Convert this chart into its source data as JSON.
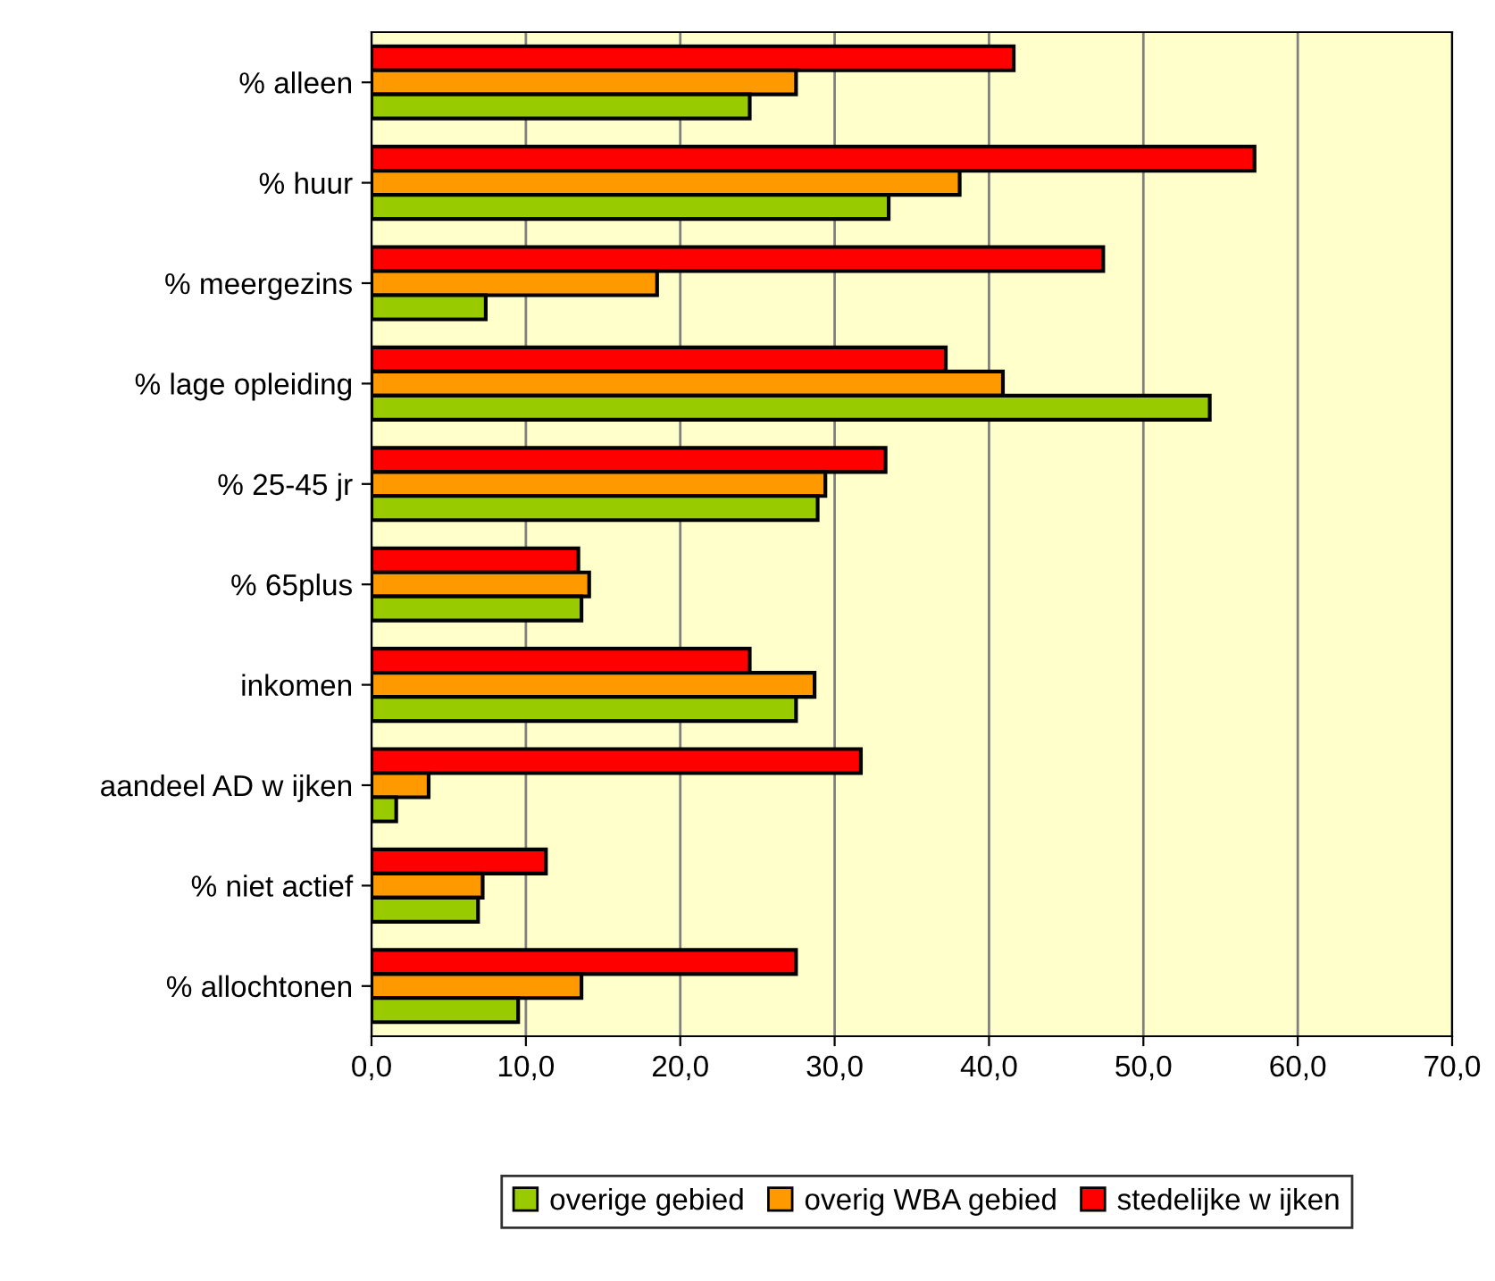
{
  "chart_data": {
    "type": "bar",
    "orientation": "horizontal",
    "categories": [
      "% alleen",
      "% huur",
      "% meergezins",
      "% lage opleiding",
      "% 25-45 jr",
      "% 65plus",
      "inkomen",
      "aandeel AD w ijken",
      "% niet actief",
      "% allochtonen"
    ],
    "series": [
      {
        "name": "stedelijke w ijken",
        "color": "#ff0000",
        "values": [
          41.6,
          57.2,
          47.4,
          37.2,
          33.3,
          13.4,
          24.5,
          31.7,
          11.3,
          27.5
        ]
      },
      {
        "name": "overig WBA gebied",
        "color": "#ff9900",
        "values": [
          27.5,
          38.1,
          18.5,
          40.9,
          29.4,
          14.1,
          28.7,
          3.7,
          7.2,
          13.6
        ]
      },
      {
        "name": "overige gebied",
        "color": "#99cc00",
        "values": [
          24.5,
          33.5,
          7.4,
          54.3,
          28.9,
          13.6,
          27.5,
          1.6,
          6.9,
          9.5
        ]
      }
    ],
    "xlim": [
      0,
      70
    ],
    "xticks": [
      {
        "value": 0,
        "label": "0,0"
      },
      {
        "value": 10,
        "label": "10,0"
      },
      {
        "value": 20,
        "label": "20,0"
      },
      {
        "value": 30,
        "label": "30,0"
      },
      {
        "value": 40,
        "label": "40,0"
      },
      {
        "value": 50,
        "label": "50,0"
      },
      {
        "value": 60,
        "label": "60,0"
      },
      {
        "value": 70,
        "label": "70,0"
      }
    ],
    "grid": "x",
    "legend": "bottom"
  }
}
